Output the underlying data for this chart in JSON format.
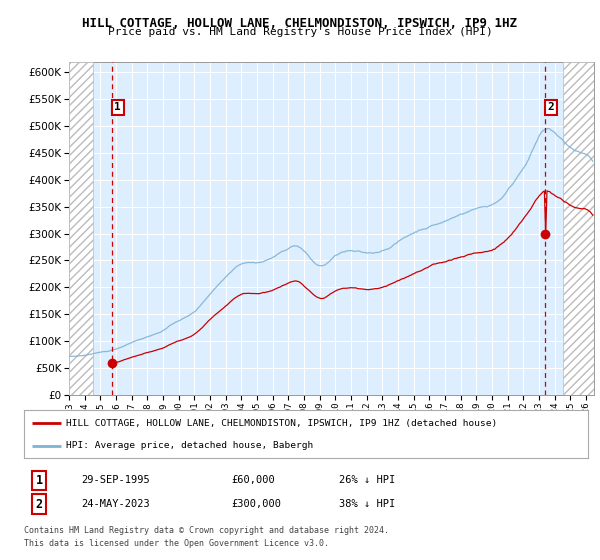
{
  "title": "HILL COTTAGE, HOLLOW LANE, CHELMONDISTON, IPSWICH, IP9 1HZ",
  "subtitle": "Price paid vs. HM Land Registry's House Price Index (HPI)",
  "legend_line1": "HILL COTTAGE, HOLLOW LANE, CHELMONDISTON, IPSWICH, IP9 1HZ (detached house)",
  "legend_line2": "HPI: Average price, detached house, Babergh",
  "footer1": "Contains HM Land Registry data © Crown copyright and database right 2024.",
  "footer2": "This data is licensed under the Open Government Licence v3.0.",
  "point1_label": "1",
  "point1_date": "29-SEP-1995",
  "point1_price": "£60,000",
  "point1_hpi": "26% ↓ HPI",
  "point2_label": "2",
  "point2_date": "24-MAY-2023",
  "point2_price": "£300,000",
  "point2_hpi": "38% ↓ HPI",
  "ylim": [
    0,
    620000
  ],
  "xlim_start": 1993.0,
  "xlim_end": 2026.5,
  "red_color": "#cc0000",
  "blue_color": "#7fb3d3",
  "bg_color": "#ddeeff",
  "grid_color": "#ffffff",
  "point1_x": 1995.75,
  "point1_y": 60000,
  "point2_x": 2023.38,
  "point2_y": 300000,
  "hatch_left_end": 1994.5,
  "hatch_right_start": 2024.5
}
